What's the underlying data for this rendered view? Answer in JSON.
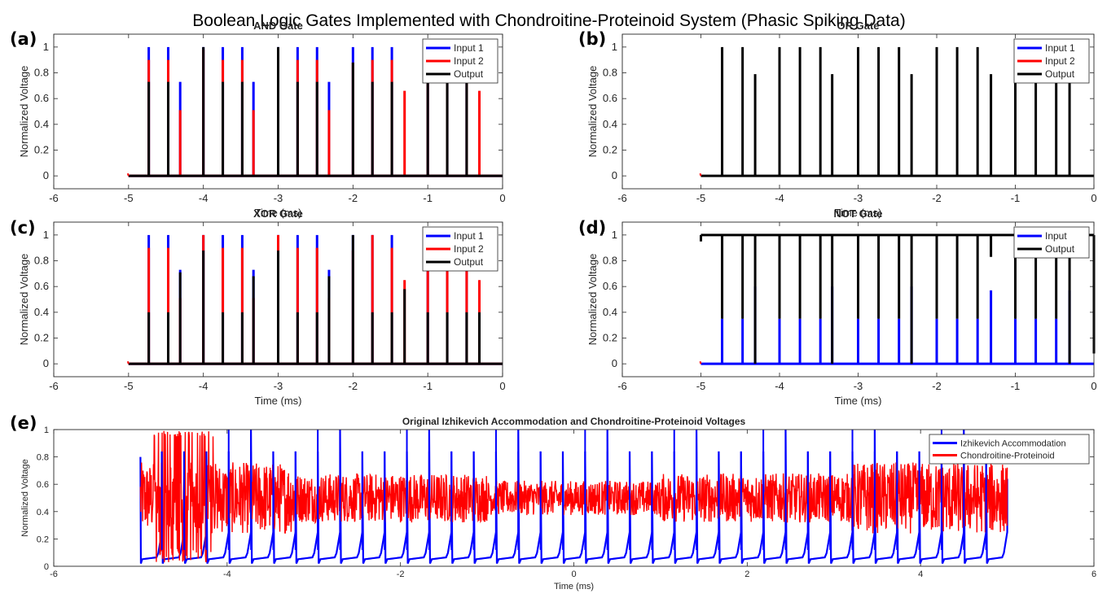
{
  "figure": {
    "title": "Boolean Logic Gates Implemented with Chondroitine-Proteinoid System (Phasic Spiking Data)"
  },
  "chart_data": [
    {
      "id": "a",
      "panel_label": "(a)",
      "type": "line",
      "title": "AND Gate",
      "xlabel": "Time (ms)",
      "ylabel": "Normalized Voltage",
      "xlim": [
        -6,
        0
      ],
      "ylim": [
        -0.1,
        1.1
      ],
      "xticks": [
        -6,
        -5,
        -4,
        -3,
        -2,
        -1,
        0
      ],
      "yticks": [
        0,
        0.2,
        0.4,
        0.6,
        0.8,
        1
      ],
      "x_start": -5,
      "x_end": 0,
      "legend_position": "top-right",
      "grid": false,
      "series": [
        {
          "name": "Input 1",
          "color": "#0000ff",
          "spikes": [
            [
              -4.73,
              1.0
            ],
            [
              -4.47,
              1.0
            ],
            [
              -4.31,
              0.73
            ],
            [
              -4.0,
              1.0
            ],
            [
              -3.74,
              1.0
            ],
            [
              -3.48,
              1.0
            ],
            [
              -3.33,
              0.73
            ],
            [
              -3.0,
              1.0
            ],
            [
              -2.74,
              1.0
            ],
            [
              -2.48,
              1.0
            ],
            [
              -2.32,
              0.73
            ],
            [
              -2.0,
              1.0
            ],
            [
              -1.74,
              1.0
            ],
            [
              -1.48,
              1.0
            ],
            [
              -1.0,
              1.0
            ],
            [
              -0.74,
              1.0
            ],
            [
              -0.48,
              1.0
            ]
          ]
        },
        {
          "name": "Input 2",
          "color": "#ff0000",
          "spikes": [
            [
              -4.73,
              0.9
            ],
            [
              -4.47,
              0.9
            ],
            [
              -4.31,
              0.51
            ],
            [
              -4.0,
              0.98
            ],
            [
              -3.74,
              0.9
            ],
            [
              -3.48,
              0.9
            ],
            [
              -3.33,
              0.51
            ],
            [
              -3.0,
              0.98
            ],
            [
              -2.74,
              0.9
            ],
            [
              -2.48,
              0.9
            ],
            [
              -2.32,
              0.51
            ],
            [
              -2.0,
              0.88
            ],
            [
              -1.74,
              0.9
            ],
            [
              -1.48,
              0.9
            ],
            [
              -1.31,
              0.66
            ],
            [
              -1.0,
              0.98
            ],
            [
              -0.74,
              0.9
            ],
            [
              -0.48,
              0.9
            ],
            [
              -0.31,
              0.66
            ]
          ]
        },
        {
          "name": "Output",
          "color": "#000000",
          "spikes": [
            [
              -4.73,
              0.73
            ],
            [
              -4.47,
              0.73
            ],
            [
              -4.0,
              1.0
            ],
            [
              -3.74,
              0.73
            ],
            [
              -3.48,
              0.73
            ],
            [
              -3.0,
              1.0
            ],
            [
              -2.74,
              0.73
            ],
            [
              -2.48,
              0.73
            ],
            [
              -2.0,
              0.88
            ],
            [
              -1.74,
              0.73
            ],
            [
              -1.48,
              0.73
            ],
            [
              -1.0,
              0.73
            ],
            [
              -0.74,
              0.73
            ],
            [
              -0.48,
              0.73
            ]
          ]
        }
      ]
    },
    {
      "id": "b",
      "panel_label": "(b)",
      "type": "line",
      "title": "OR Gate",
      "xlabel": "Time (ms)",
      "ylabel": "Normalized Voltage",
      "xlim": [
        -6,
        0
      ],
      "ylim": [
        -0.1,
        1.1
      ],
      "xticks": [
        -6,
        -5,
        -4,
        -3,
        -2,
        -1,
        0
      ],
      "yticks": [
        0,
        0.2,
        0.4,
        0.6,
        0.8,
        1
      ],
      "x_start": -5,
      "x_end": 0,
      "legend_position": "top-right",
      "grid": false,
      "series": [
        {
          "name": "Input 1",
          "color": "#0000ff",
          "spikes": []
        },
        {
          "name": "Input 2",
          "color": "#ff0000",
          "spikes": []
        },
        {
          "name": "Output",
          "color": "#000000",
          "spikes": [
            [
              -4.73,
              1.0
            ],
            [
              -4.47,
              1.0
            ],
            [
              -4.31,
              0.79
            ],
            [
              -4.0,
              1.0
            ],
            [
              -3.74,
              1.0
            ],
            [
              -3.48,
              1.0
            ],
            [
              -3.33,
              0.79
            ],
            [
              -3.0,
              1.0
            ],
            [
              -2.74,
              1.0
            ],
            [
              -2.48,
              1.0
            ],
            [
              -2.32,
              0.79
            ],
            [
              -2.0,
              1.0
            ],
            [
              -1.74,
              1.0
            ],
            [
              -1.48,
              1.0
            ],
            [
              -1.31,
              0.79
            ],
            [
              -1.0,
              1.0
            ],
            [
              -0.74,
              1.0
            ],
            [
              -0.48,
              1.0
            ],
            [
              -0.31,
              0.79
            ]
          ]
        }
      ]
    },
    {
      "id": "c",
      "panel_label": "(c)",
      "type": "line",
      "title": "XOR Gate",
      "xlabel": "Time (ms)",
      "ylabel": "Normalized Voltage",
      "xlim": [
        -6,
        0
      ],
      "ylim": [
        -0.1,
        1.1
      ],
      "xticks": [
        -6,
        -5,
        -4,
        -3,
        -2,
        -1,
        0
      ],
      "yticks": [
        0,
        0.2,
        0.4,
        0.6,
        0.8,
        1
      ],
      "x_start": -5,
      "x_end": 0,
      "legend_position": "top-right",
      "grid": false,
      "series": [
        {
          "name": "Input 1",
          "color": "#0000ff",
          "spikes": [
            [
              -4.73,
              1.0
            ],
            [
              -4.47,
              1.0
            ],
            [
              -4.31,
              0.73
            ],
            [
              -4.0,
              1.0
            ],
            [
              -3.74,
              1.0
            ],
            [
              -3.48,
              1.0
            ],
            [
              -3.33,
              0.73
            ],
            [
              -3.0,
              1.0
            ],
            [
              -2.74,
              1.0
            ],
            [
              -2.48,
              1.0
            ],
            [
              -2.32,
              0.73
            ],
            [
              -2.0,
              1.0
            ],
            [
              -1.74,
              1.0
            ],
            [
              -1.48,
              1.0
            ],
            [
              -1.0,
              1.0
            ],
            [
              -0.74,
              1.0
            ],
            [
              -0.48,
              1.0
            ]
          ]
        },
        {
          "name": "Input 2",
          "color": "#ff0000",
          "spikes": [
            [
              -4.73,
              0.9
            ],
            [
              -4.47,
              0.9
            ],
            [
              -4.31,
              0.51
            ],
            [
              -4.0,
              1.0
            ],
            [
              -3.74,
              0.9
            ],
            [
              -3.48,
              0.9
            ],
            [
              -3.33,
              0.51
            ],
            [
              -3.0,
              1.0
            ],
            [
              -2.74,
              0.9
            ],
            [
              -2.48,
              0.9
            ],
            [
              -2.32,
              0.51
            ],
            [
              -2.0,
              0.88
            ],
            [
              -1.74,
              1.0
            ],
            [
              -1.48,
              0.9
            ],
            [
              -1.31,
              0.65
            ],
            [
              -1.0,
              0.9
            ],
            [
              -0.74,
              0.9
            ],
            [
              -0.48,
              0.9
            ],
            [
              -0.31,
              0.65
            ]
          ]
        },
        {
          "name": "Output",
          "color": "#000000",
          "spikes": [
            [
              -4.73,
              0.4
            ],
            [
              -4.47,
              0.4
            ],
            [
              -4.31,
              0.71
            ],
            [
              -4.0,
              0.88
            ],
            [
              -3.74,
              0.4
            ],
            [
              -3.48,
              0.4
            ],
            [
              -3.33,
              0.68
            ],
            [
              -3.0,
              0.88
            ],
            [
              -2.74,
              0.4
            ],
            [
              -2.48,
              0.4
            ],
            [
              -2.32,
              0.68
            ],
            [
              -2.0,
              1.0
            ],
            [
              -1.74,
              0.4
            ],
            [
              -1.48,
              0.4
            ],
            [
              -1.31,
              0.58
            ],
            [
              -1.0,
              0.4
            ],
            [
              -0.74,
              0.4
            ],
            [
              -0.48,
              0.4
            ],
            [
              -0.31,
              0.4
            ]
          ]
        }
      ]
    },
    {
      "id": "d",
      "panel_label": "(d)",
      "type": "line",
      "title": "NOT Gate",
      "xlabel": "Time (ms)",
      "ylabel": "Normalized Voltage",
      "xlim": [
        -6,
        0
      ],
      "ylim": [
        -0.1,
        1.1
      ],
      "xticks": [
        -6,
        -5,
        -4,
        -3,
        -2,
        -1,
        0
      ],
      "yticks": [
        0,
        0.2,
        0.4,
        0.6,
        0.8,
        1
      ],
      "x_start": -5,
      "x_end": 0,
      "legend_position": "top-right",
      "grid": false,
      "series": [
        {
          "name": "Input",
          "color": "#0000ff",
          "spikes": [
            [
              -4.73,
              0.35
            ],
            [
              -4.47,
              0.35
            ],
            [
              -4.31,
              0.6
            ],
            [
              -4.0,
              0.35
            ],
            [
              -3.74,
              0.35
            ],
            [
              -3.48,
              0.35
            ],
            [
              -3.33,
              0.6
            ],
            [
              -3.0,
              0.35
            ],
            [
              -2.74,
              0.35
            ],
            [
              -2.48,
              0.35
            ],
            [
              -2.32,
              0.6
            ],
            [
              -2.0,
              0.35
            ],
            [
              -1.74,
              0.35
            ],
            [
              -1.48,
              0.35
            ],
            [
              -1.31,
              0.57
            ],
            [
              -1.0,
              0.35
            ],
            [
              -0.74,
              0.35
            ],
            [
              -0.48,
              0.35
            ],
            [
              -0.31,
              0.57
            ]
          ]
        },
        {
          "name": "Output",
          "color": "#000000",
          "baseline": 1.0,
          "dips": [
            [
              -4.73,
              0.35
            ],
            [
              -4.47,
              0.35
            ],
            [
              -4.31,
              0.0
            ],
            [
              -4.0,
              0.35
            ],
            [
              -3.74,
              0.35
            ],
            [
              -3.48,
              0.35
            ],
            [
              -3.33,
              0.0
            ],
            [
              -3.0,
              0.35
            ],
            [
              -2.74,
              0.35
            ],
            [
              -2.48,
              0.35
            ],
            [
              -2.32,
              0.0
            ],
            [
              -2.0,
              0.35
            ],
            [
              -1.74,
              0.35
            ],
            [
              -1.48,
              0.35
            ],
            [
              -1.31,
              0.83
            ],
            [
              -1.0,
              0.35
            ],
            [
              -0.74,
              0.35
            ],
            [
              -0.48,
              0.35
            ],
            [
              -0.31,
              0.0
            ]
          ]
        }
      ]
    },
    {
      "id": "e",
      "panel_label": "(e)",
      "type": "line",
      "title": "Original Izhikevich Accommodation and Chondroitine-Proteinoid Voltages",
      "xlabel": "Time (ms)",
      "ylabel": "Normalized Voltage",
      "xlim": [
        -6,
        6
      ],
      "ylim": [
        0,
        1
      ],
      "xticks": [
        -6,
        -4,
        -2,
        0,
        2,
        4,
        6
      ],
      "yticks": [
        0,
        0.2,
        0.4,
        0.6,
        0.8,
        1
      ],
      "x_start": -5,
      "x_end": 5,
      "legend_position": "top-right",
      "grid": false,
      "series": [
        {
          "name": "Izhikevich Accommodation",
          "color": "#0000ff",
          "spike_period_ms": 0.247,
          "baseline_level": 0.05,
          "spike_peak": 0.84
        },
        {
          "name": "Chondroitine-Proteinoid",
          "color": "#ff0000",
          "mean_level": 0.5,
          "noise_amplitude": 0.18
        }
      ]
    }
  ]
}
